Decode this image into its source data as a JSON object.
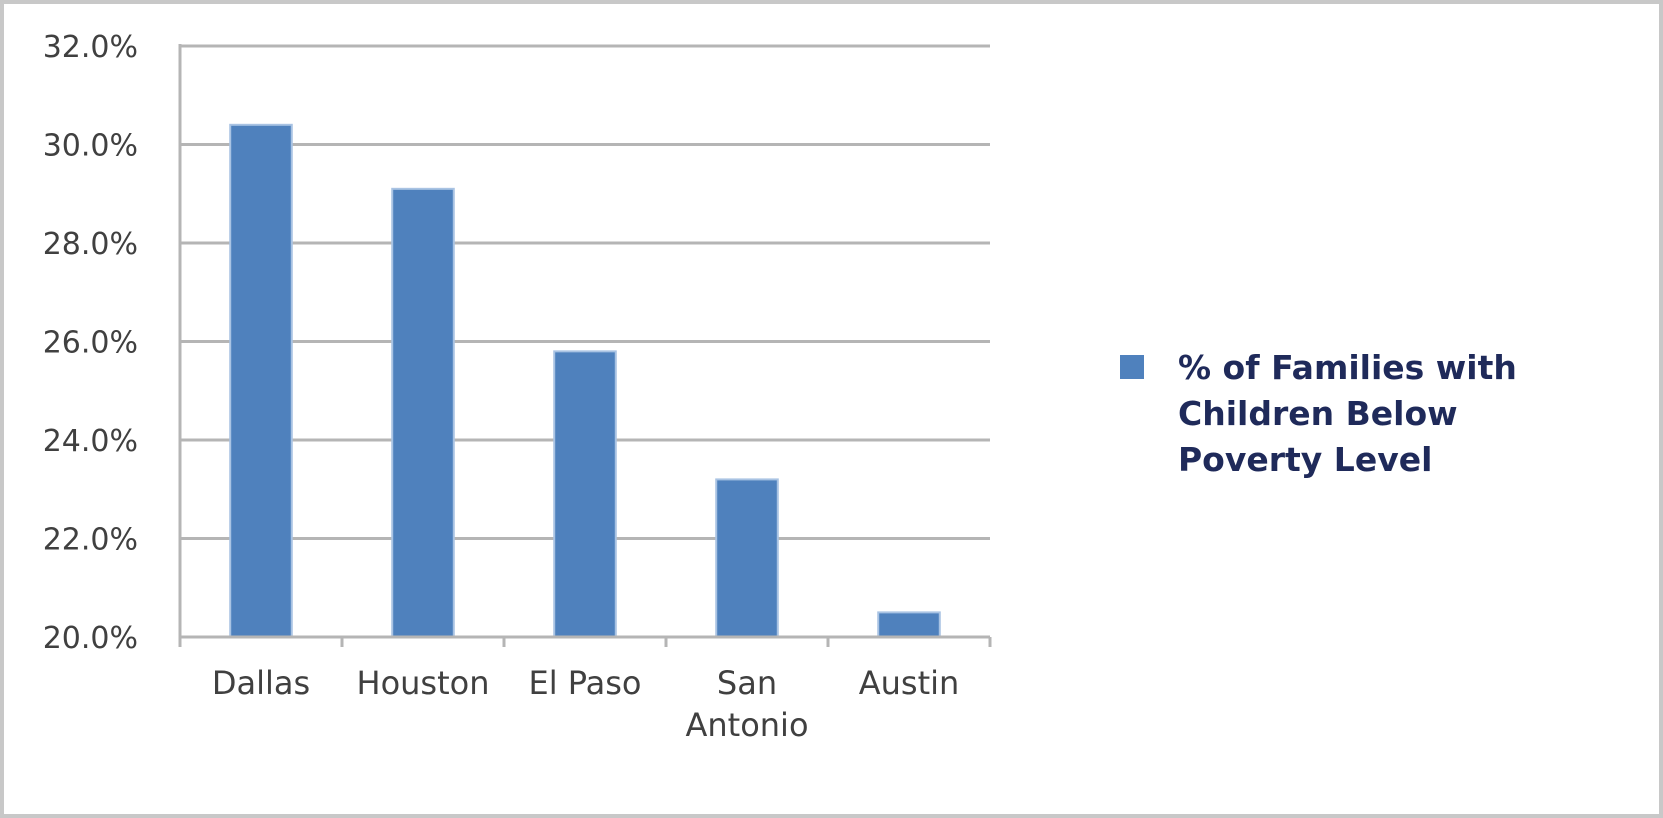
{
  "chart_data": {
    "type": "bar",
    "categories": [
      "Dallas",
      "Houston",
      "El Paso",
      "San Antonio",
      "Austin"
    ],
    "category_label_lines": [
      [
        "Dallas"
      ],
      [
        "Houston"
      ],
      [
        "El Paso"
      ],
      [
        "San",
        "Antonio"
      ],
      [
        "Austin"
      ]
    ],
    "series": [
      {
        "name": "% of Families with Children Below Poverty Level",
        "values": [
          30.4,
          29.1,
          25.8,
          23.2,
          20.5
        ],
        "color": "#4f81bd"
      }
    ],
    "ylim": [
      20,
      32
    ],
    "y_ticks": [
      20,
      22,
      24,
      26,
      28,
      30,
      32
    ],
    "y_tick_labels": [
      "20.0%",
      "22.0%",
      "24.0%",
      "26.0%",
      "28.0%",
      "30.0%",
      "32.0%"
    ],
    "grid": true,
    "legend_position": "right",
    "title": "",
    "xlabel": "",
    "ylabel": ""
  }
}
